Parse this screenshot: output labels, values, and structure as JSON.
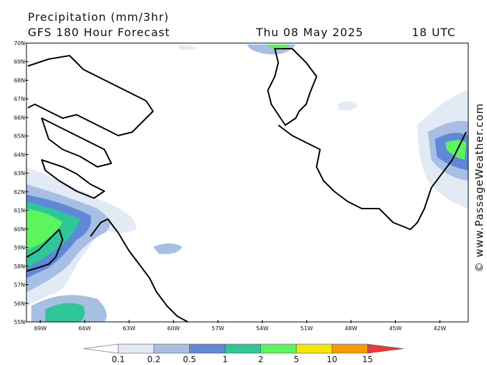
{
  "header": {
    "title": "Precipitation (mm/3hr)",
    "subtitle": "GFS 180 Hour Forecast",
    "date": "Thu 08 May 2025",
    "time": "18 UTC"
  },
  "axes": {
    "lat_labels": [
      "70N",
      "69N",
      "68N",
      "67N",
      "66N",
      "65N",
      "64N",
      "63N",
      "62N",
      "61N",
      "60N",
      "59N",
      "58N",
      "57N",
      "56N",
      "55N"
    ],
    "lon_labels": [
      "69W",
      "66W",
      "63W",
      "60W",
      "57W",
      "54W",
      "51W",
      "48W",
      "45W",
      "42W"
    ]
  },
  "colorbar": {
    "labels": [
      "0.1",
      "0.2",
      "0.5",
      "1",
      "2",
      "5",
      "10",
      "15"
    ],
    "colors": [
      "#ffffff",
      "#e2eaf6",
      "#a6bfe2",
      "#5f88d6",
      "#2fc79a",
      "#5df55d",
      "#f5e600",
      "#f59a00",
      "#e83a3a"
    ]
  },
  "watermark": "© www.PassageWeather.com"
}
